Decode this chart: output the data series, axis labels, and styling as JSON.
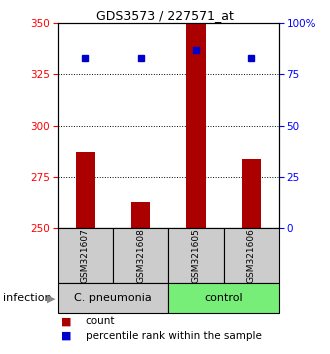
{
  "title": "GDS3573 / 227571_at",
  "samples": [
    "GSM321607",
    "GSM321608",
    "GSM321605",
    "GSM321606"
  ],
  "counts": [
    287,
    263,
    350,
    284
  ],
  "percentile_ranks": [
    83,
    83,
    87,
    83
  ],
  "y_min": 250,
  "y_max": 350,
  "y_ticks": [
    250,
    275,
    300,
    325,
    350
  ],
  "y2_ticks": [
    0,
    25,
    50,
    75,
    100
  ],
  "bar_color": "#aa0000",
  "dot_color": "#0000cc",
  "bar_width": 0.35,
  "groups": [
    {
      "label": "C. pneumonia",
      "color": "#cccccc",
      "indices": [
        0,
        1
      ]
    },
    {
      "label": "control",
      "color": "#77ee77",
      "indices": [
        2,
        3
      ]
    }
  ],
  "legend_count_label": "count",
  "legend_pct_label": "percentile rank within the sample",
  "title_fontsize": 9,
  "tick_fontsize": 7.5,
  "sample_fontsize": 6.5,
  "group_fontsize": 8,
  "legend_fontsize": 7.5
}
